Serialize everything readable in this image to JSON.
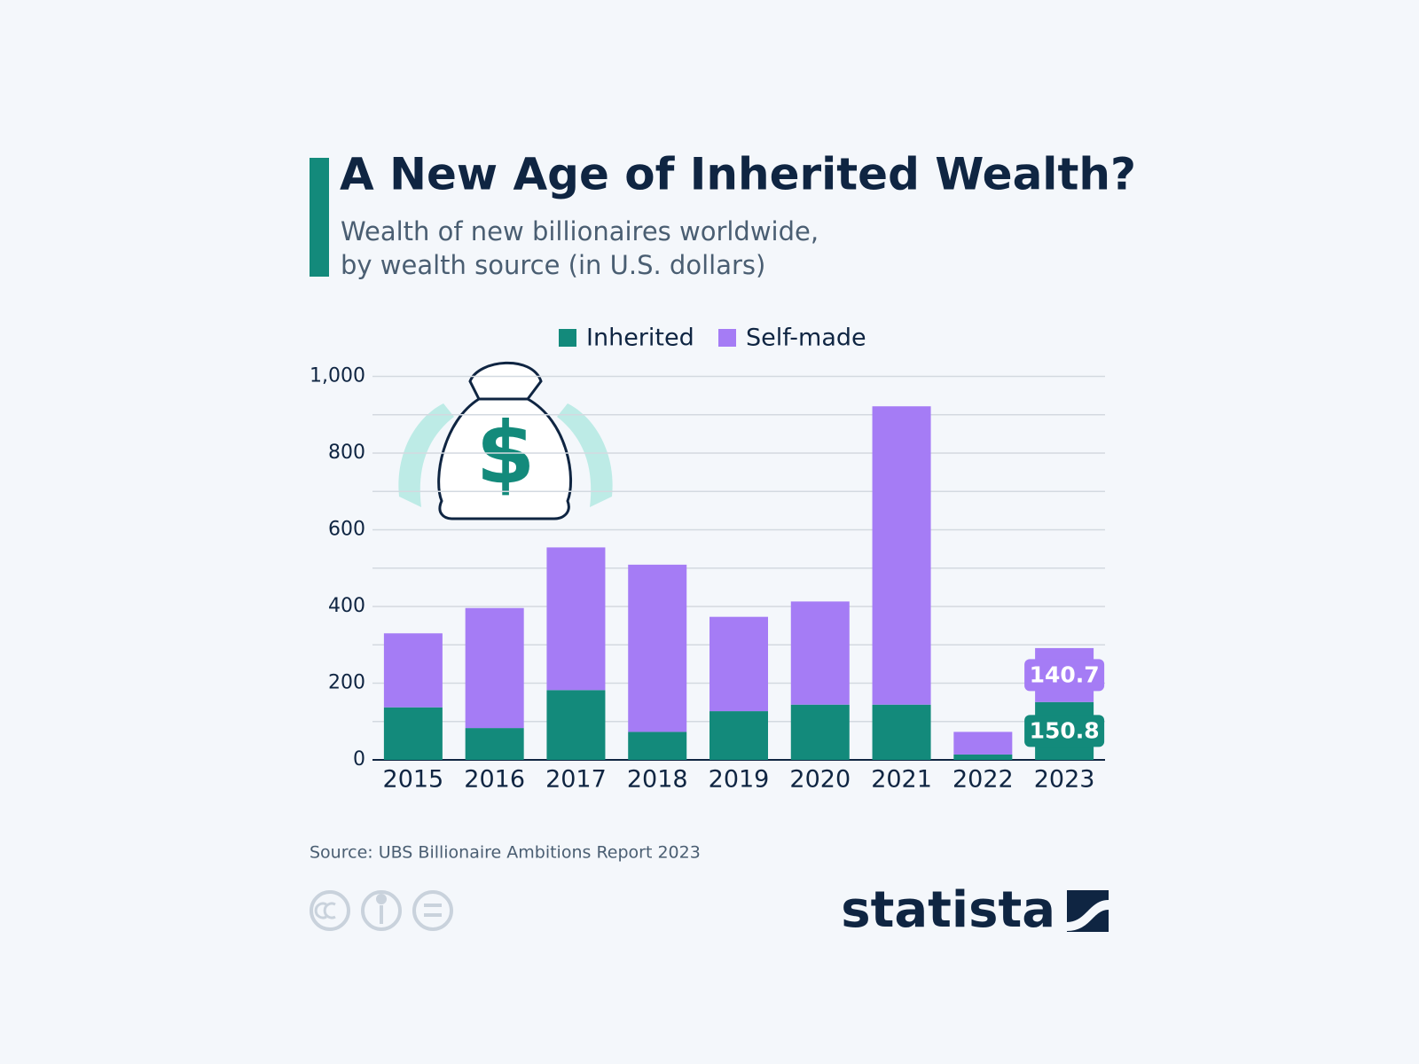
{
  "chart_data": {
    "type": "stacked-bar",
    "title": "A New Age of Inherited Wealth?",
    "subtitle": [
      "Wealth of new billionaires worldwide,",
      "by wealth source (in U.S. dollars)"
    ],
    "categories": [
      "2015",
      "2016",
      "2017",
      "2018",
      "2019",
      "2020",
      "2021",
      "2022",
      "2023"
    ],
    "series": [
      {
        "name": "Inherited",
        "color": "#138a7b",
        "values": [
          137,
          83,
          182,
          73,
          127,
          144,
          144,
          14,
          150.8
        ],
        "value_labels": [
          null,
          null,
          null,
          null,
          null,
          null,
          null,
          null,
          "150.8"
        ]
      },
      {
        "name": "Self-made",
        "color": "#a57cf5",
        "values": [
          193,
          313,
          372,
          436,
          246,
          269,
          778,
          59,
          140.7
        ],
        "value_labels": [
          null,
          null,
          null,
          null,
          null,
          null,
          null,
          null,
          "140.7"
        ]
      }
    ],
    "ylim": [
      0,
      1000
    ],
    "yticks": [
      0,
      200,
      400,
      600,
      800,
      {
        "value": 1000,
        "label": "1,000"
      }
    ],
    "minor_yticks": [
      100,
      300,
      500,
      700,
      900
    ],
    "grid": true,
    "legend": "top",
    "source": "Source: UBS Billionaire Ambitions Report 2023",
    "brand": "statista"
  }
}
